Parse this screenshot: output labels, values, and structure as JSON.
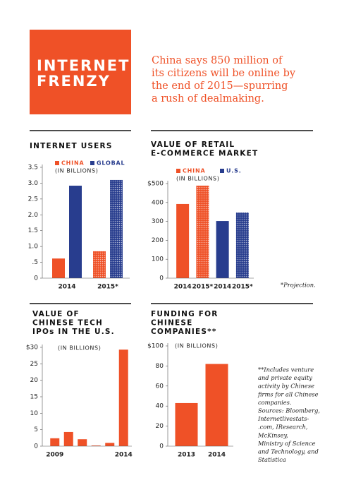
{
  "header": {
    "title": [
      "INTERNET",
      "FRENZY"
    ],
    "text": [
      "China says 850 million of",
      "its citizens will be online by",
      "the end of 2015—spurring",
      "a rush of dealmaking."
    ]
  },
  "chart_data": [
    {
      "type": "bar",
      "title": [
        "INTERNET USERS"
      ],
      "subtitle": "(IN BILLIONS)",
      "categories": [
        "2014",
        "2015*"
      ],
      "series": [
        {
          "name": "CHINA",
          "color": "#ef5127",
          "values": [
            0.62,
            0.85
          ]
        },
        {
          "name": "GLOBAL",
          "color": "#283d8e",
          "values": [
            2.92,
            3.1
          ]
        }
      ],
      "ylim": [
        0,
        3.5
      ],
      "yticks": [
        0,
        {
          "value": 0.5,
          "label": ".5"
        },
        {
          "value": 1,
          "label": "1.0"
        },
        1.5,
        {
          "value": 2,
          "label": "2.0"
        },
        2.5,
        {
          "value": 3,
          "label": "3.0"
        },
        3.5
      ]
    },
    {
      "type": "bar",
      "title": [
        "VALUE OF RETAIL",
        "E-COMMERCE MARKET"
      ],
      "subtitle": "(IN BILLIONS)",
      "categories": [
        "2014",
        "2015*",
        "2014",
        "2015*"
      ],
      "series": [
        {
          "name": "CHINA",
          "color": "#ef5127",
          "values": [
            392,
            489,
            null,
            null
          ]
        },
        {
          "name": "U.S.",
          "color": "#283d8e",
          "values": [
            null,
            null,
            302,
            347
          ]
        }
      ],
      "ylim": [
        0,
        500
      ],
      "yticks": [
        0,
        100,
        200,
        300,
        400,
        {
          "value": 500,
          "label": "$500"
        }
      ],
      "note": [
        "*Projection."
      ]
    },
    {
      "type": "bar",
      "title": [
        "VALUE OF",
        "CHINESE TECH",
        "IPOs IN THE U.S."
      ],
      "subtitle": "(IN BILLIONS)",
      "categories": [
        "2009",
        null,
        null,
        null,
        null,
        "2014"
      ],
      "values": [
        2.4,
        4.3,
        2.1,
        0.2,
        1.0,
        29.3
      ],
      "color": "#ef5127",
      "ylim": [
        0,
        30
      ],
      "yticks": [
        0,
        5,
        10,
        15,
        20,
        25,
        {
          "value": 30,
          "label": "$30"
        }
      ]
    },
    {
      "type": "bar",
      "title": [
        "FUNDING FOR",
        "CHINESE",
        "COMPANIES**"
      ],
      "subtitle": "(IN BILLIONS)",
      "categories": [
        "2013",
        "2014"
      ],
      "values": [
        43,
        82
      ],
      "color": "#ef5127",
      "ylim": [
        0,
        100
      ],
      "yticks": [
        0,
        20,
        40,
        60,
        80,
        {
          "value": 100,
          "label": "$100"
        }
      ],
      "note": [
        "**Includes venture",
        "and private equity",
        "activity by Chinese",
        "firms for all Chinese",
        "companies.",
        "Sources: Bloomberg,",
        "Internetlivestats-",
        ".com, IResearch,",
        "McKinsey,",
        "Ministry of Science",
        "and Technology, and",
        "Statistica"
      ]
    }
  ]
}
